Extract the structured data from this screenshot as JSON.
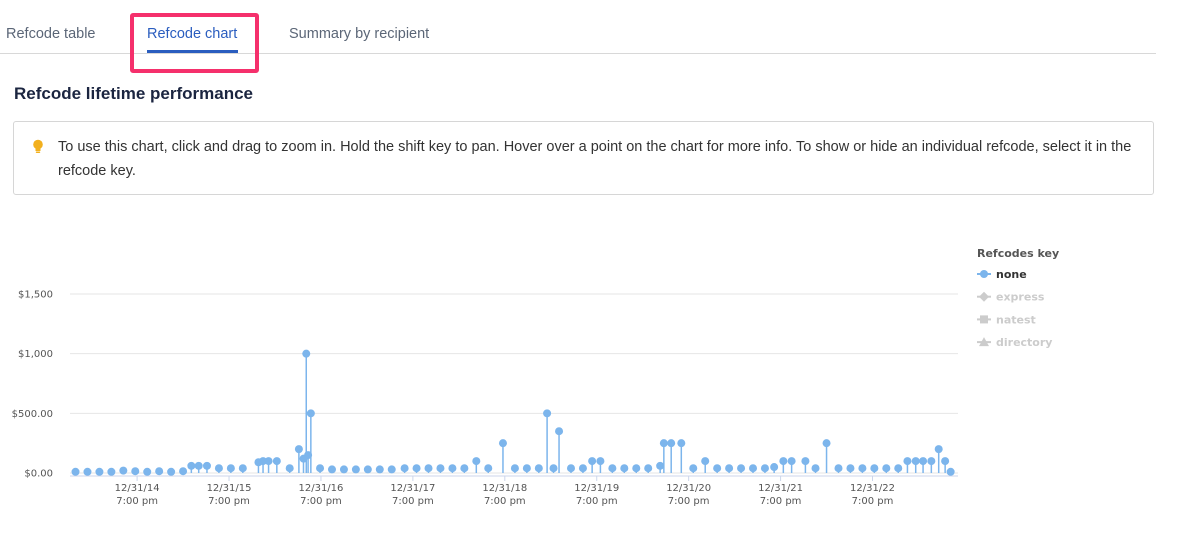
{
  "tabs": [
    "Refcode table",
    "Refcode chart",
    "Summary by recipient"
  ],
  "active_tab": 1,
  "heading": "Refcode lifetime performance",
  "info": "To use this chart, click and drag to zoom in. Hold the shift key to pan. Hover over a point on the chart for more info. To show or hide an individual refcode, select it in the refcode key.",
  "chart_data": {
    "type": "stem",
    "legend_title": "Refcodes key",
    "legend_position": "right",
    "grid": true,
    "xlim": [
      2014.27,
      2023.93
    ],
    "xticks": [
      {
        "value": 2015,
        "label": [
          "12/31/14",
          "7:00 pm"
        ]
      },
      {
        "value": 2016,
        "label": [
          "12/31/15",
          "7:00 pm"
        ]
      },
      {
        "value": 2017,
        "label": [
          "12/31/16",
          "7:00 pm"
        ]
      },
      {
        "value": 2018,
        "label": [
          "12/31/17",
          "7:00 pm"
        ]
      },
      {
        "value": 2019,
        "label": [
          "12/31/18",
          "7:00 pm"
        ]
      },
      {
        "value": 2020,
        "label": [
          "12/31/19",
          "7:00 pm"
        ]
      },
      {
        "value": 2021,
        "label": [
          "12/31/20",
          "7:00 pm"
        ]
      },
      {
        "value": 2022,
        "label": [
          "12/31/21",
          "7:00 pm"
        ]
      },
      {
        "value": 2023,
        "label": [
          "12/31/22",
          "7:00 pm"
        ]
      }
    ],
    "ylim": [
      0,
      1500
    ],
    "yticks": [
      {
        "value": 0,
        "label": "$0.00"
      },
      {
        "value": 500,
        "label": "$500.00"
      },
      {
        "value": 1000,
        "label": "$1,000"
      },
      {
        "value": 1500,
        "label": "$1,500"
      }
    ],
    "series": [
      {
        "name": "none",
        "color": "#7cb5ec",
        "marker": "circle",
        "visible": true,
        "x": [
          2014.33,
          2014.46,
          2014.59,
          2014.72,
          2014.85,
          2014.98,
          2015.11,
          2015.24,
          2015.37,
          2015.5,
          2015.59,
          2015.67,
          2015.76,
          2015.89,
          2016.02,
          2016.15,
          2016.32,
          2016.37,
          2016.43,
          2016.52,
          2016.66,
          2016.76,
          2016.81,
          2016.84,
          2016.86,
          2016.89,
          2016.99,
          2017.12,
          2017.25,
          2017.38,
          2017.51,
          2017.64,
          2017.77,
          2017.91,
          2018.04,
          2018.17,
          2018.3,
          2018.43,
          2018.56,
          2018.69,
          2018.82,
          2018.98,
          2019.11,
          2019.24,
          2019.37,
          2019.46,
          2019.53,
          2019.59,
          2019.72,
          2019.85,
          2019.95,
          2020.04,
          2020.17,
          2020.3,
          2020.43,
          2020.56,
          2020.69,
          2020.73,
          2020.81,
          2020.92,
          2021.05,
          2021.18,
          2021.31,
          2021.44,
          2021.57,
          2021.7,
          2021.83,
          2021.93,
          2022.03,
          2022.12,
          2022.27,
          2022.38,
          2022.5,
          2022.63,
          2022.76,
          2022.89,
          2023.02,
          2023.15,
          2023.28,
          2023.38,
          2023.47,
          2023.55,
          2023.64,
          2023.72,
          2023.79,
          2023.85
        ],
        "values": [
          10,
          10,
          10,
          10,
          20,
          15,
          10,
          15,
          10,
          15,
          60,
          60,
          60,
          40,
          40,
          40,
          90,
          100,
          100,
          100,
          40,
          200,
          120,
          1000,
          150,
          500,
          40,
          30,
          30,
          30,
          30,
          30,
          30,
          40,
          40,
          40,
          40,
          40,
          40,
          100,
          40,
          250,
          40,
          40,
          40,
          500,
          40,
          350,
          40,
          40,
          100,
          100,
          40,
          40,
          40,
          40,
          60,
          250,
          250,
          250,
          40,
          100,
          40,
          40,
          40,
          40,
          40,
          50,
          100,
          100,
          100,
          40,
          250,
          40,
          40,
          40,
          40,
          40,
          40,
          100,
          100,
          100,
          100,
          200,
          100,
          10
        ]
      },
      {
        "name": "express",
        "color": "#cccccc",
        "marker": "diamond",
        "visible": false,
        "x": [],
        "values": []
      },
      {
        "name": "natest",
        "color": "#cccccc",
        "marker": "square",
        "visible": false,
        "x": [],
        "values": []
      },
      {
        "name": "directory",
        "color": "#cccccc",
        "marker": "triangle",
        "visible": false,
        "x": [],
        "values": []
      }
    ]
  }
}
